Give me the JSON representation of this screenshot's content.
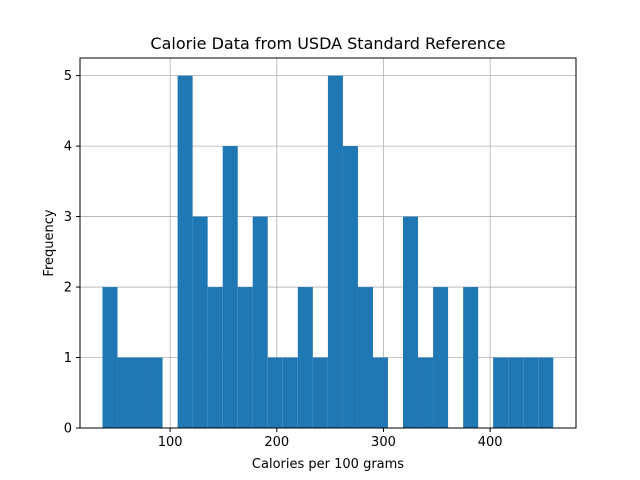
{
  "chart_data": {
    "type": "bar",
    "title": "Calorie Data from USDA Standard Reference",
    "xlabel": "Calories per 100 grams",
    "ylabel": "Frequency",
    "xlim": [
      15.5,
      480.5
    ],
    "ylim": [
      0,
      5.25
    ],
    "xticks": [
      100,
      200,
      300,
      400
    ],
    "yticks": [
      0,
      1,
      2,
      3,
      4,
      5
    ],
    "grid": true,
    "color": "#1f77b4",
    "bin_width": 14.08,
    "bins": [
      {
        "x0": 36.6,
        "value": 2
      },
      {
        "x0": 50.7,
        "value": 1
      },
      {
        "x0": 64.7,
        "value": 1
      },
      {
        "x0": 78.8,
        "value": 1
      },
      {
        "x0": 92.9,
        "value": 0
      },
      {
        "x0": 107.0,
        "value": 5
      },
      {
        "x0": 121.1,
        "value": 3
      },
      {
        "x0": 135.2,
        "value": 2
      },
      {
        "x0": 149.3,
        "value": 4
      },
      {
        "x0": 163.4,
        "value": 2
      },
      {
        "x0": 177.4,
        "value": 3
      },
      {
        "x0": 191.5,
        "value": 1
      },
      {
        "x0": 205.6,
        "value": 1
      },
      {
        "x0": 219.7,
        "value": 2
      },
      {
        "x0": 233.8,
        "value": 1
      },
      {
        "x0": 247.9,
        "value": 5
      },
      {
        "x0": 262.0,
        "value": 4
      },
      {
        "x0": 276.1,
        "value": 2
      },
      {
        "x0": 290.1,
        "value": 1
      },
      {
        "x0": 304.2,
        "value": 0
      },
      {
        "x0": 318.3,
        "value": 3
      },
      {
        "x0": 332.4,
        "value": 1
      },
      {
        "x0": 346.5,
        "value": 2
      },
      {
        "x0": 360.6,
        "value": 0
      },
      {
        "x0": 374.7,
        "value": 2
      },
      {
        "x0": 388.8,
        "value": 0
      },
      {
        "x0": 402.8,
        "value": 1
      },
      {
        "x0": 416.9,
        "value": 1
      },
      {
        "x0": 431.0,
        "value": 1
      },
      {
        "x0": 445.1,
        "value": 1
      }
    ]
  }
}
